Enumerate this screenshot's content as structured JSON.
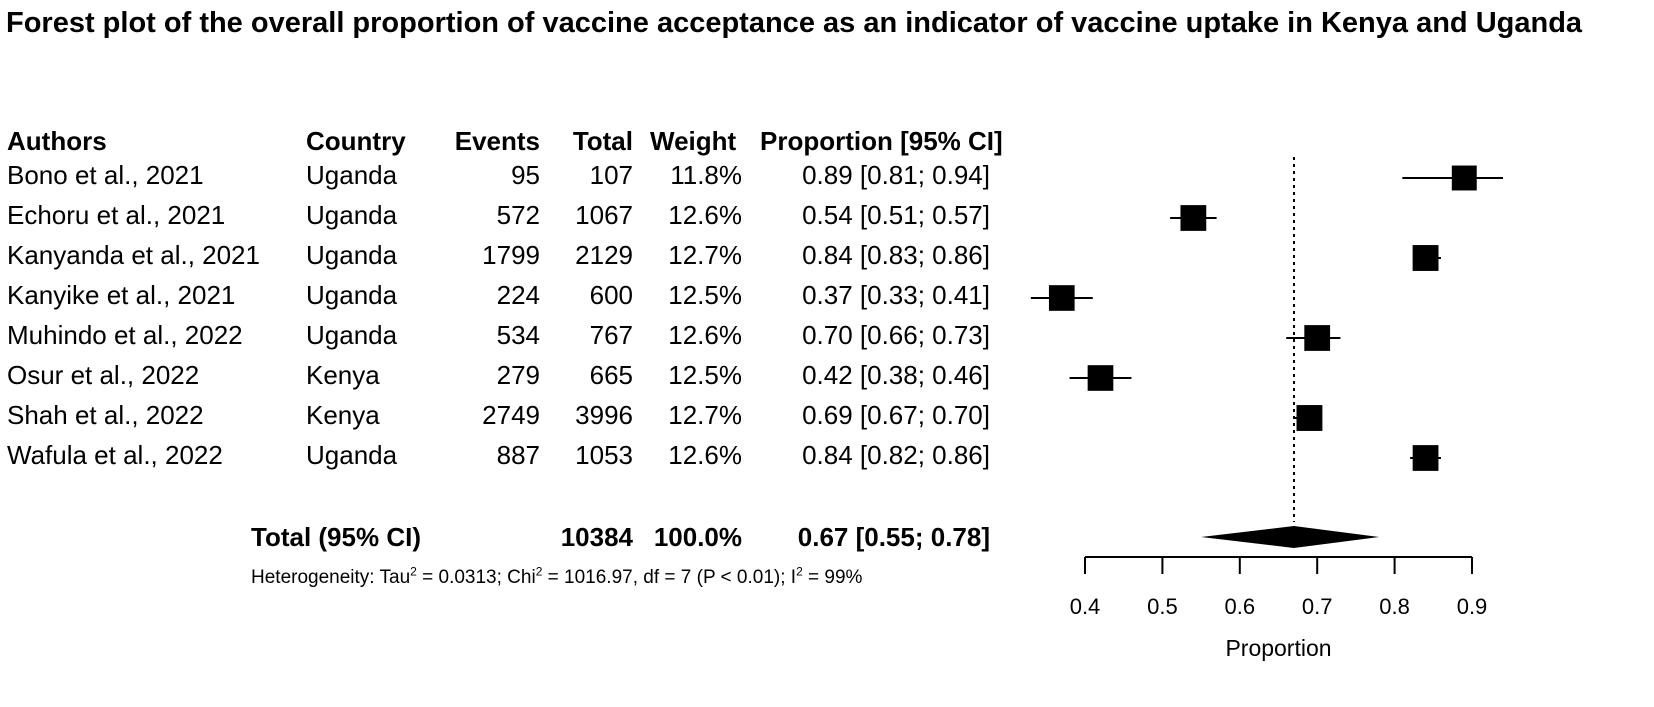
{
  "title": "Forest plot of the overall proportion of vaccine acceptance as an indicator of vaccine uptake in Kenya and Uganda",
  "headers": {
    "authors": "Authors",
    "country": "Country",
    "events": "Events",
    "total": "Total",
    "weight": "Weight",
    "proportion": "Proportion [95% CI]"
  },
  "rows": [
    {
      "author": "Bono et al., 2021",
      "country": "Uganda",
      "events": "95",
      "total": "107",
      "weight": "11.8%",
      "ci_text": "0.89 [0.81; 0.94]"
    },
    {
      "author": "Echoru et al., 2021",
      "country": "Uganda",
      "events": "572",
      "total": "1067",
      "weight": "12.6%",
      "ci_text": "0.54 [0.51; 0.57]"
    },
    {
      "author": "Kanyanda et al., 2021",
      "country": "Uganda",
      "events": "1799",
      "total": "2129",
      "weight": "12.7%",
      "ci_text": "0.84 [0.83; 0.86]"
    },
    {
      "author": "Kanyike et al., 2021",
      "country": "Uganda",
      "events": "224",
      "total": "600",
      "weight": "12.5%",
      "ci_text": "0.37 [0.33; 0.41]"
    },
    {
      "author": "Muhindo et al., 2022",
      "country": "Uganda",
      "events": "534",
      "total": "767",
      "weight": "12.6%",
      "ci_text": "0.70 [0.66; 0.73]"
    },
    {
      "author": "Osur et al., 2022",
      "country": "Kenya",
      "events": "279",
      "total": "665",
      "weight": "12.5%",
      "ci_text": "0.42 [0.38; 0.46]"
    },
    {
      "author": "Shah et al., 2022",
      "country": "Kenya",
      "events": "2749",
      "total": "3996",
      "weight": "12.7%",
      "ci_text": "0.69 [0.67; 0.70]"
    },
    {
      "author": "Wafula et al., 2022",
      "country": "Uganda",
      "events": "887",
      "total": "1053",
      "weight": "12.6%",
      "ci_text": "0.84 [0.82; 0.86]"
    }
  ],
  "total_row": {
    "label": "Total (95% CI)",
    "total": "10384",
    "weight": "100.0%",
    "ci_text": "0.67 [0.55; 0.78]"
  },
  "heterogeneity": {
    "p1": "Heterogeneity: Tau",
    "s1": "2",
    "p2": " = 0.0313; Chi",
    "s2": "2",
    "p3": " = 1016.97, df = 7 (P < 0.01); I",
    "s3": "2",
    "p4": " = 99%"
  },
  "chart_data": {
    "type": "forest",
    "title": "Forest plot of the overall proportion of vaccine acceptance as an indicator of vaccine uptake in Kenya and Uganda",
    "xlabel": "Proportion",
    "xlim": [
      0.4,
      0.9
    ],
    "xticks": [
      0.4,
      0.5,
      0.6,
      0.7,
      0.8,
      0.9
    ],
    "xtick_labels": [
      "0.4",
      "0.5",
      "0.6",
      "0.7",
      "0.8",
      "0.9"
    ],
    "reference_line": 0.67,
    "studies": [
      {
        "name": "Bono et al., 2021",
        "estimate": 0.89,
        "lower": 0.81,
        "upper": 0.94,
        "weight": 11.8
      },
      {
        "name": "Echoru et al., 2021",
        "estimate": 0.54,
        "lower": 0.51,
        "upper": 0.57,
        "weight": 12.6
      },
      {
        "name": "Kanyanda et al., 2021",
        "estimate": 0.84,
        "lower": 0.83,
        "upper": 0.86,
        "weight": 12.7
      },
      {
        "name": "Kanyike et al., 2021",
        "estimate": 0.37,
        "lower": 0.33,
        "upper": 0.41,
        "weight": 12.5
      },
      {
        "name": "Muhindo et al., 2022",
        "estimate": 0.7,
        "lower": 0.66,
        "upper": 0.73,
        "weight": 12.6
      },
      {
        "name": "Osur et al., 2022",
        "estimate": 0.42,
        "lower": 0.38,
        "upper": 0.46,
        "weight": 12.5
      },
      {
        "name": "Shah et al., 2022",
        "estimate": 0.69,
        "lower": 0.67,
        "upper": 0.7,
        "weight": 12.7
      },
      {
        "name": "Wafula et al., 2022",
        "estimate": 0.84,
        "lower": 0.82,
        "upper": 0.86,
        "weight": 12.6
      }
    ],
    "pooled": {
      "estimate": 0.67,
      "lower": 0.55,
      "upper": 0.78
    }
  }
}
